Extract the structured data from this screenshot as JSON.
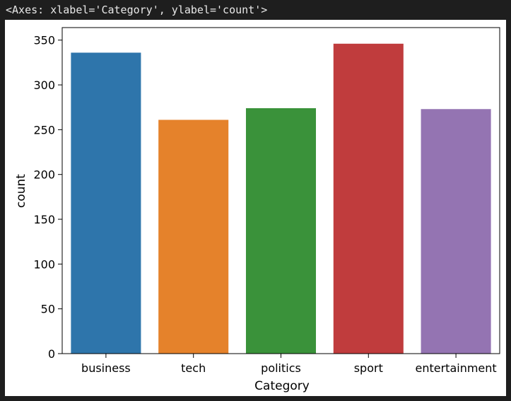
{
  "output": {
    "repr": "<Axes: xlabel='Category', ylabel='count'>"
  },
  "chart_data": {
    "type": "bar",
    "categories": [
      "business",
      "tech",
      "politics",
      "sport",
      "entertainment"
    ],
    "values": [
      336,
      261,
      274,
      346,
      273
    ],
    "colors": [
      "#2e75ab",
      "#e5822b",
      "#3a923a",
      "#c03c3d",
      "#9474b2"
    ],
    "xlabel": "Category",
    "ylabel": "count",
    "ylim": [
      0,
      364
    ],
    "yticks": [
      0,
      50,
      100,
      150,
      200,
      250,
      300,
      350
    ],
    "grid": false,
    "legend": false
  }
}
